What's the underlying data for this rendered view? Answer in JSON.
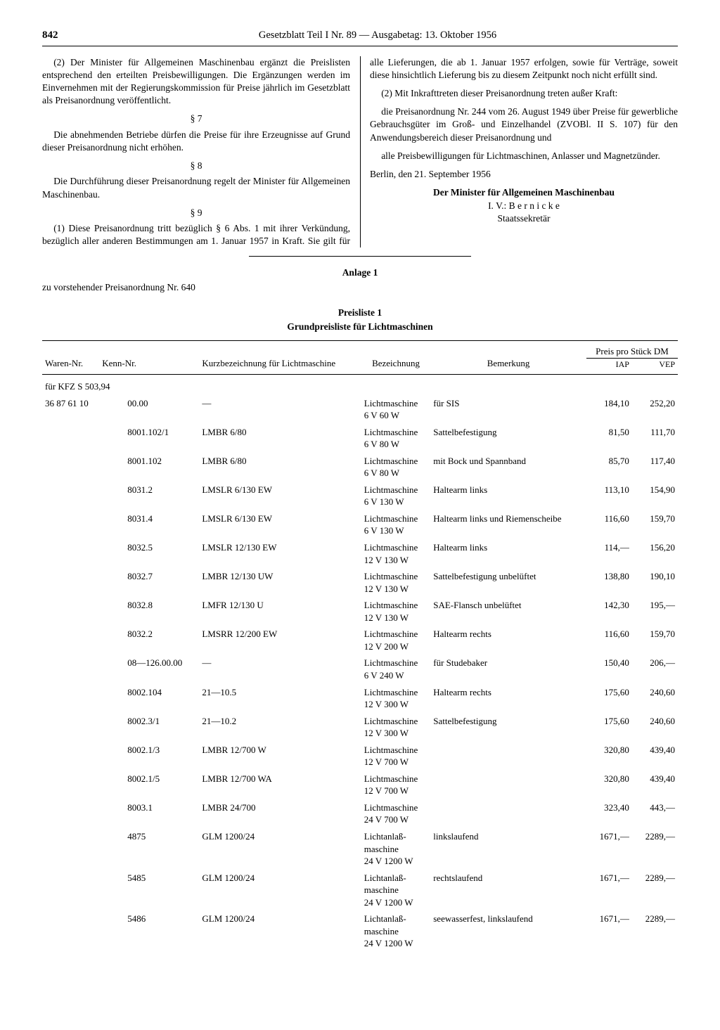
{
  "header": {
    "page_number": "842",
    "title": "Gesetzblatt Teil I Nr. 89 — Ausgabetag: 13. Oktober 1956"
  },
  "body_text": {
    "p2": "(2) Der Minister für Allgemeinen Maschinenbau ergänzt die Preislisten entsprechend den erteilten Preisbewilligungen. Die Ergänzungen werden im Einvernehmen mit der Regierungskommission für Preise jährlich im Gesetzblatt als Preisanordnung veröffentlicht.",
    "s7": "§ 7",
    "s7_text": "Die abnehmenden Betriebe dürfen die Preise für ihre Erzeugnisse auf Grund dieser Preisanordnung nicht erhöhen.",
    "s8": "§ 8",
    "s8_text": "Die Durchführung dieser Preisanordnung regelt der Minister für Allgemeinen Maschinenbau.",
    "s9": "§ 9",
    "s9_1": "(1) Diese Preisanordnung tritt bezüglich § 6 Abs. 1 mit ihrer Verkündung, bezüglich aller anderen Bestimmungen am 1. Januar 1957 in Kraft. Sie gilt für alle Lieferungen, die ab 1. Januar 1957 erfolgen, sowie für Verträge, soweit diese hinsichtlich Lieferung bis zu diesem Zeitpunkt noch nicht erfüllt sind.",
    "s9_2": "(2) Mit Inkrafttreten dieser Preisanordnung treten außer Kraft:",
    "s9_2a": "die Preisanordnung Nr. 244 vom 26. August 1949 über Preise für gewerbliche Gebrauchsgüter im Groß- und Einzelhandel (ZVOBl. II S. 107) für den Anwendungsbereich dieser Preisanordnung und",
    "s9_2b": "alle Preisbewilligungen für Lichtmaschinen, Anlasser und Magnetzünder.",
    "place_date": "Berlin, den 21. September 1956",
    "minister": "Der Minister für Allgemeinen Maschinenbau",
    "iv": "I. V.: B e r n i c k e",
    "role": "Staatssekretär"
  },
  "anlage": {
    "title": "Anlage 1",
    "sub": "zu vorstehender Preisanordnung Nr. 640",
    "list_title": "Preisliste 1",
    "list_subtitle": "Grundpreisliste für Lichtmaschinen"
  },
  "table": {
    "headers": {
      "waren": "Waren-Nr.",
      "kenn": "Kenn-Nr.",
      "kurz": "Kurzbezeichnung für Lichtmaschine",
      "bez": "Bezeichnung",
      "bem": "Bemerkung",
      "preis": "Preis pro Stück DM",
      "iap": "IAP",
      "vep": "VEP"
    },
    "group": "für KFZ S 503,94",
    "waren_prefix": "36 87 61 10",
    "rows": [
      {
        "kenn": "00.00",
        "kurz": "—",
        "bez": "Lichtmaschine 6 V  60 W",
        "bem": "für SIS",
        "iap": "184,10",
        "vep": "252,20"
      },
      {
        "kenn": "8001.102/1",
        "kurz": "LMBR 6/80",
        "bez": "Lichtmaschine 6 V  80 W",
        "bem": "Sattelbefestigung",
        "iap": "81,50",
        "vep": "111,70"
      },
      {
        "kenn": "8001.102",
        "kurz": "LMBR 6/80",
        "bez": "Lichtmaschine 6 V  80 W",
        "bem": "mit Bock und Spannband",
        "iap": "85,70",
        "vep": "117,40"
      },
      {
        "kenn": "8031.2",
        "kurz": "LMSLR 6/130 EW",
        "bez": "Lichtmaschine 6 V  130 W",
        "bem": "Haltearm links",
        "iap": "113,10",
        "vep": "154,90"
      },
      {
        "kenn": "8031.4",
        "kurz": "LMSLR 6/130 EW",
        "bez": "Lichtmaschine 6 V  130 W",
        "bem": "Haltearm links und Riemenscheibe",
        "iap": "116,60",
        "vep": "159,70"
      },
      {
        "kenn": "8032.5",
        "kurz": "LMSLR 12/130 EW",
        "bez": "Lichtmaschine 12 V  130 W",
        "bem": "Haltearm links",
        "iap": "114,—",
        "vep": "156,20"
      },
      {
        "kenn": "8032.7",
        "kurz": "LMBR 12/130 UW",
        "bez": "Lichtmaschine 12 V  130 W",
        "bem": "Sattelbefestigung unbelüftet",
        "iap": "138,80",
        "vep": "190,10"
      },
      {
        "kenn": "8032.8",
        "kurz": "LMFR 12/130 U",
        "bez": "Lichtmaschine 12 V  130 W",
        "bem": "SAE-Flansch unbelüftet",
        "iap": "142,30",
        "vep": "195,—"
      },
      {
        "kenn": "8032.2",
        "kurz": "LMSRR 12/200 EW",
        "bez": "Lichtmaschine 12 V  200 W",
        "bem": "Haltearm rechts",
        "iap": "116,60",
        "vep": "159,70"
      },
      {
        "kenn": "08—126.00.00",
        "kurz": "—",
        "bez": "Lichtmaschine 6 V  240 W",
        "bem": "für Studebaker",
        "iap": "150,40",
        "vep": "206,—"
      },
      {
        "kenn": "8002.104",
        "kurz": "21—10.5",
        "bez": "Lichtmaschine 12 V  300 W",
        "bem": "Haltearm rechts",
        "iap": "175,60",
        "vep": "240,60"
      },
      {
        "kenn": "8002.3/1",
        "kurz": "21—10.2",
        "bez": "Lichtmaschine 12 V  300 W",
        "bem": "Sattelbefestigung",
        "iap": "175,60",
        "vep": "240,60"
      },
      {
        "kenn": "8002.1/3",
        "kurz": "LMBR 12/700 W",
        "bez": "Lichtmaschine 12 V  700 W",
        "bem": "",
        "iap": "320,80",
        "vep": "439,40"
      },
      {
        "kenn": "8002.1/5",
        "kurz": "LMBR 12/700 WA",
        "bez": "Lichtmaschine 12 V  700 W",
        "bem": "",
        "iap": "320,80",
        "vep": "439,40"
      },
      {
        "kenn": "8003.1",
        "kurz": "LMBR 24/700",
        "bez": "Lichtmaschine 24 V  700 W",
        "bem": "",
        "iap": "323,40",
        "vep": "443,—"
      },
      {
        "kenn": "4875",
        "kurz": "GLM 1200/24",
        "bez": "Lichtanlaß-maschine 24 V  1200 W",
        "bem": "linkslaufend",
        "iap": "1671,—",
        "vep": "2289,—"
      },
      {
        "kenn": "5485",
        "kurz": "GLM 1200/24",
        "bez": "Lichtanlaß-maschine 24 V  1200 W",
        "bem": "rechtslaufend",
        "iap": "1671,—",
        "vep": "2289,—"
      },
      {
        "kenn": "5486",
        "kurz": "GLM 1200/24",
        "bez": "Lichtanlaß-maschine 24 V  1200 W",
        "bem": "seewasserfest, linkslaufend",
        "iap": "1671,—",
        "vep": "2289,—"
      }
    ]
  }
}
